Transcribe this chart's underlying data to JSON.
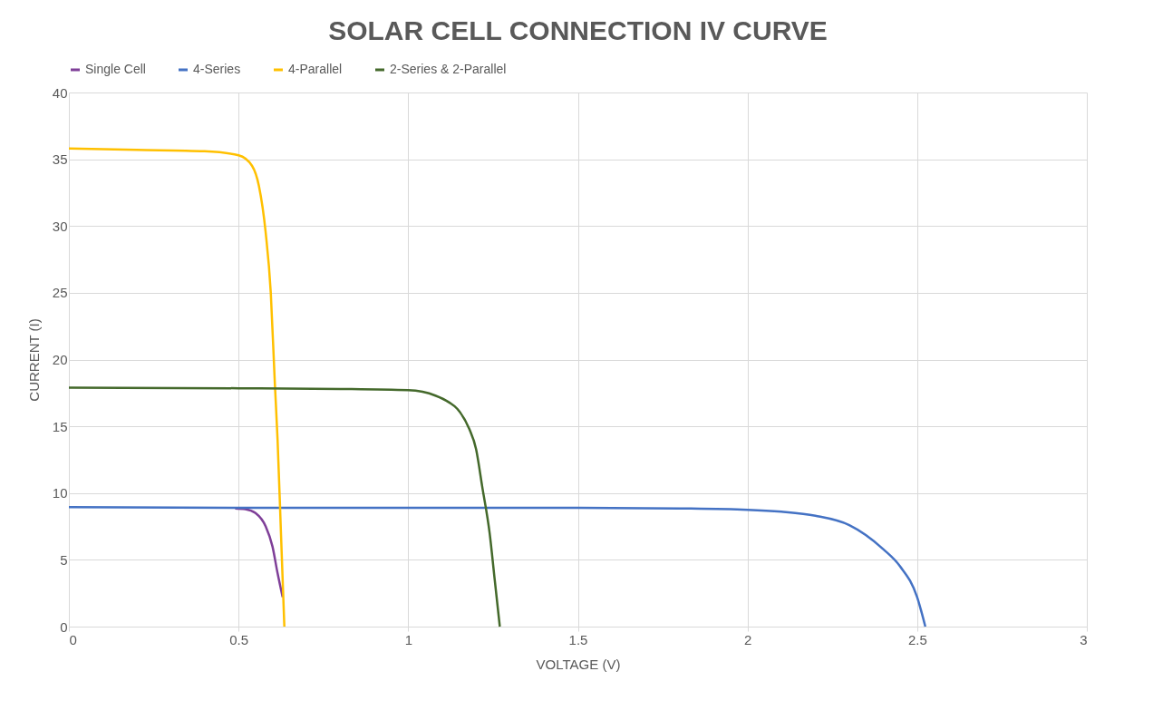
{
  "chart_data": {
    "type": "line",
    "title": "SOLAR CELL CONNECTION IV CURVE",
    "xlabel": "VOLTAGE (V)",
    "ylabel": "CURRENT (I)",
    "xlim": [
      0,
      3
    ],
    "xticks": [
      0,
      0.5,
      1,
      1.5,
      2,
      2.5,
      3
    ],
    "ylim": [
      0,
      40
    ],
    "yticks": [
      0,
      5,
      10,
      15,
      20,
      25,
      30,
      35,
      40
    ],
    "grid": true,
    "legend": "top",
    "marker": "none",
    "line_style": "solid",
    "series": [
      {
        "name": "Single Cell",
        "color": "#7f3f98",
        "x": [
          0.49,
          0.52,
          0.55,
          0.58,
          0.6,
          0.615,
          0.63
        ],
        "values": [
          8.85,
          8.8,
          8.5,
          7.5,
          6,
          4,
          2.2
        ]
      },
      {
        "name": "4-Series",
        "color": "#4472c4",
        "x": [
          0,
          0.5,
          1.0,
          1.5,
          1.8,
          2.0,
          2.1,
          2.2,
          2.3,
          2.4,
          2.45,
          2.5,
          2.524
        ],
        "values": [
          8.95,
          8.9,
          8.9,
          8.9,
          8.85,
          8.75,
          8.6,
          8.3,
          7.6,
          5.8,
          4.5,
          2.2,
          0
        ]
      },
      {
        "name": "4-Parallel",
        "color": "#ffc000",
        "x": [
          0,
          0.2,
          0.4,
          0.5,
          0.54,
          0.56,
          0.58,
          0.595,
          0.607,
          0.615,
          0.625,
          0.635
        ],
        "values": [
          35.8,
          35.7,
          35.6,
          35.3,
          34.5,
          33,
          29.5,
          25,
          18.2,
          14,
          7,
          0
        ]
      },
      {
        "name": "2-Series & 2-Parallel",
        "color": "#44692b",
        "x": [
          0,
          0.5,
          0.8,
          1.0,
          1.08,
          1.12,
          1.145,
          1.18,
          1.2,
          1.218,
          1.24,
          1.255,
          1.27
        ],
        "values": [
          17.9,
          17.85,
          17.8,
          17.7,
          17.3,
          16.8,
          16.3,
          14.8,
          13.3,
          10.5,
          7,
          3.5,
          0
        ]
      }
    ]
  }
}
